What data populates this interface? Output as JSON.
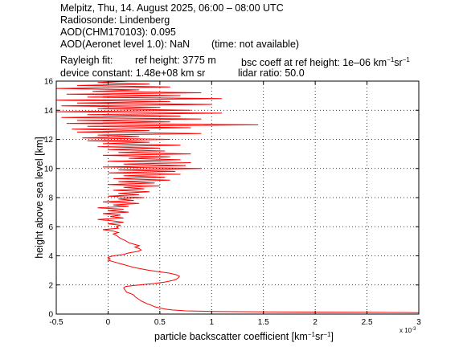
{
  "header": {
    "line1": "Melpitz, Thu, 14. August 2025, 06:00 – 08:00 UTC",
    "line2": "Radiosonde: Lindenberg",
    "line3": "AOD(CHM170103): 0.095",
    "line4a": "AOD(Aeronet level 1.0): NaN",
    "line4b": "(time: not available)",
    "line5a": "Rayleigh fit:",
    "line5b": "ref height: 3775 m",
    "line5c_pre": "bsc coeff at ref height: 1e–06 km",
    "line5c_sup1": "−1",
    "line5c_mid": "sr",
    "line5c_sup2": "−1",
    "line6a": "device constant: 1.48e+08 km sr",
    "line6b": "lidar ratio: 50.0"
  },
  "chart_data": {
    "type": "line",
    "xlabel_pre": "particle backscatter coefficient [km",
    "xlabel_sup1": "−1",
    "xlabel_mid": "sr",
    "xlabel_sup2": "−1",
    "xlabel_post": "]",
    "ylabel": "height above sea level [km]",
    "x_multiplier": "x 10",
    "x_multiplier_exp": "-3",
    "xlim": [
      -0.5,
      3
    ],
    "ylim": [
      0,
      16
    ],
    "xticks": [
      -0.5,
      0,
      0.5,
      1,
      1.5,
      2,
      2.5,
      3
    ],
    "xtick_labels": [
      "-0.5",
      "0",
      "0.5",
      "1",
      "1.5",
      "2",
      "2.5",
      "3"
    ],
    "yticks": [
      0,
      2,
      4,
      6,
      8,
      10,
      12,
      14,
      16
    ],
    "ytick_labels": [
      "0",
      "2",
      "4",
      "6",
      "8",
      "10",
      "12",
      "14",
      "16"
    ],
    "grid": true,
    "series": [
      {
        "color": "#ff0000",
        "points": [
          [
            3.0,
            0.1
          ],
          [
            2.5,
            0.12
          ],
          [
            1.5,
            0.15
          ],
          [
            1.0,
            0.18
          ],
          [
            0.75,
            0.22
          ],
          [
            0.62,
            0.28
          ],
          [
            0.55,
            0.35
          ],
          [
            0.5,
            0.42
          ],
          [
            0.45,
            0.5
          ],
          [
            0.42,
            0.6
          ],
          [
            0.38,
            0.7
          ],
          [
            0.35,
            0.8
          ],
          [
            0.32,
            0.9
          ],
          [
            0.3,
            1.0
          ],
          [
            0.28,
            1.1
          ],
          [
            0.26,
            1.2
          ],
          [
            0.25,
            1.3
          ],
          [
            0.22,
            1.4
          ],
          [
            0.18,
            1.5
          ],
          [
            0.17,
            1.6
          ],
          [
            0.16,
            1.7
          ],
          [
            0.15,
            1.8
          ],
          [
            0.17,
            1.9
          ],
          [
            0.3,
            2.0
          ],
          [
            0.45,
            2.1
          ],
          [
            0.55,
            2.2
          ],
          [
            0.62,
            2.3
          ],
          [
            0.66,
            2.4
          ],
          [
            0.68,
            2.5
          ],
          [
            0.69,
            2.6
          ],
          [
            0.66,
            2.7
          ],
          [
            0.6,
            2.8
          ],
          [
            0.5,
            2.9
          ],
          [
            0.4,
            3.0
          ],
          [
            0.32,
            3.1
          ],
          [
            0.25,
            3.2
          ],
          [
            0.2,
            3.3
          ],
          [
            0.15,
            3.4
          ],
          [
            0.1,
            3.5
          ],
          [
            0.05,
            3.6
          ],
          [
            0.0,
            3.7
          ],
          [
            0.02,
            3.8
          ],
          [
            0.0,
            3.9
          ],
          [
            0.05,
            4.0
          ],
          [
            0.15,
            4.1
          ],
          [
            0.2,
            4.2
          ],
          [
            0.28,
            4.3
          ],
          [
            0.32,
            4.4
          ],
          [
            0.3,
            4.5
          ],
          [
            0.26,
            4.6
          ],
          [
            0.3,
            4.7
          ],
          [
            0.25,
            4.8
          ],
          [
            0.2,
            4.9
          ],
          [
            0.18,
            5.0
          ],
          [
            0.15,
            5.1
          ],
          [
            0.12,
            5.2
          ],
          [
            0.1,
            5.3
          ],
          [
            0.08,
            5.4
          ],
          [
            0.05,
            5.5
          ],
          [
            0.1,
            5.6
          ],
          [
            0.05,
            5.7
          ],
          [
            -0.05,
            5.8
          ],
          [
            0.1,
            5.9
          ],
          [
            0.08,
            6.0
          ],
          [
            0.12,
            6.1
          ],
          [
            0.0,
            6.2
          ],
          [
            0.15,
            6.3
          ],
          [
            0.05,
            6.4
          ],
          [
            -0.1,
            6.5
          ],
          [
            0.15,
            6.6
          ],
          [
            0.02,
            6.7
          ],
          [
            0.12,
            6.8
          ],
          [
            -0.05,
            6.9
          ],
          [
            0.2,
            7.0
          ],
          [
            0.0,
            7.1
          ],
          [
            0.15,
            7.2
          ],
          [
            -0.1,
            7.3
          ],
          [
            0.2,
            7.4
          ],
          [
            0.05,
            7.5
          ],
          [
            0.3,
            7.6
          ],
          [
            -0.05,
            7.7
          ],
          [
            0.25,
            7.8
          ],
          [
            0.1,
            7.9
          ],
          [
            0.35,
            8.0
          ],
          [
            0.0,
            8.1
          ],
          [
            0.3,
            8.2
          ],
          [
            0.1,
            8.3
          ],
          [
            0.4,
            8.4
          ],
          [
            0.05,
            8.5
          ],
          [
            0.35,
            8.6
          ],
          [
            0.15,
            8.7
          ],
          [
            0.5,
            8.8
          ],
          [
            0.0,
            8.9
          ],
          [
            0.45,
            9.0
          ],
          [
            0.1,
            9.1
          ],
          [
            0.6,
            9.2
          ],
          [
            0.05,
            9.3
          ],
          [
            0.55,
            9.4
          ],
          [
            0.15,
            9.5
          ],
          [
            0.7,
            9.6
          ],
          [
            0.0,
            9.7
          ],
          [
            0.65,
            9.8
          ],
          [
            0.1,
            9.9
          ],
          [
            0.9,
            10.0
          ],
          [
            -0.05,
            10.1
          ],
          [
            0.75,
            10.2
          ],
          [
            0.15,
            10.3
          ],
          [
            0.8,
            10.4
          ],
          [
            0.0,
            10.5
          ],
          [
            0.7,
            10.6
          ],
          [
            0.2,
            10.7
          ],
          [
            0.6,
            10.8
          ],
          [
            -0.05,
            10.9
          ],
          [
            0.8,
            11.0
          ],
          [
            0.1,
            11.1
          ],
          [
            0.55,
            11.2
          ],
          [
            0.0,
            11.3
          ],
          [
            0.5,
            11.4
          ],
          [
            -0.1,
            11.5
          ],
          [
            0.7,
            11.6
          ],
          [
            -0.05,
            11.7
          ],
          [
            0.4,
            11.8
          ],
          [
            -0.2,
            11.9
          ],
          [
            0.6,
            12.0
          ],
          [
            -0.25,
            12.1
          ],
          [
            0.3,
            12.2
          ],
          [
            -0.1,
            12.3
          ],
          [
            0.9,
            12.4
          ],
          [
            -0.3,
            12.5
          ],
          [
            0.4,
            12.6
          ],
          [
            -0.35,
            12.7
          ],
          [
            0.8,
            12.8
          ],
          [
            -0.2,
            12.9
          ],
          [
            1.45,
            13.0
          ],
          [
            -0.4,
            13.1
          ],
          [
            0.6,
            13.2
          ],
          [
            -0.3,
            13.3
          ],
          [
            0.9,
            13.4
          ],
          [
            -0.45,
            13.5
          ],
          [
            0.7,
            13.6
          ],
          [
            -0.2,
            13.7
          ],
          [
            1.1,
            13.8
          ],
          [
            -0.5,
            13.9
          ],
          [
            0.8,
            14.0
          ],
          [
            -0.1,
            14.1
          ],
          [
            0.5,
            14.2
          ],
          [
            -0.45,
            14.3
          ],
          [
            1.0,
            14.4
          ],
          [
            -0.3,
            14.5
          ],
          [
            0.6,
            14.6
          ],
          [
            -0.5,
            14.7
          ],
          [
            1.1,
            14.8
          ],
          [
            -0.2,
            14.9
          ],
          [
            0.7,
            15.0
          ],
          [
            -0.4,
            15.1
          ],
          [
            0.9,
            15.2
          ],
          [
            -0.15,
            15.3
          ],
          [
            0.3,
            15.4
          ],
          [
            -0.5,
            15.5
          ],
          [
            0.6,
            15.6
          ],
          [
            -0.3,
            15.7
          ],
          [
            0.4,
            15.8
          ],
          [
            -0.1,
            15.9
          ],
          [
            0.2,
            16.0
          ]
        ]
      }
    ]
  }
}
